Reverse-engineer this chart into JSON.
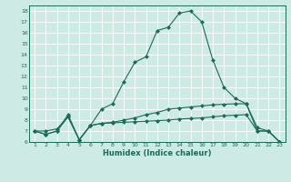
{
  "xlabel": "Humidex (Indice chaleur)",
  "bg_color": "#ceeae4",
  "line_color": "#1a6b5a",
  "xlim": [
    1,
    23
  ],
  "ylim": [
    6,
    18
  ],
  "xticks": [
    1,
    2,
    3,
    4,
    5,
    6,
    7,
    8,
    9,
    10,
    11,
    12,
    13,
    14,
    15,
    16,
    17,
    18,
    19,
    20,
    21,
    22,
    23
  ],
  "yticks": [
    6,
    7,
    8,
    9,
    10,
    11,
    12,
    13,
    14,
    15,
    16,
    17,
    18
  ],
  "line1_x": [
    1,
    2,
    3,
    4,
    5,
    6,
    7,
    8,
    9,
    10,
    11,
    12,
    13,
    14,
    15,
    16,
    17,
    18,
    19,
    20,
    21,
    22,
    23
  ],
  "line1_y": [
    7.0,
    6.7,
    7.0,
    8.3,
    6.2,
    7.5,
    7.7,
    7.75,
    7.8,
    7.85,
    7.9,
    7.95,
    8.0,
    8.1,
    8.15,
    8.2,
    8.3,
    8.4,
    8.45,
    8.5,
    7.0,
    7.0,
    6.0
  ],
  "line2_x": [
    1,
    2,
    3,
    4,
    5,
    6,
    7,
    8,
    9,
    10,
    11,
    12,
    13,
    14,
    15,
    16,
    17,
    18,
    19,
    20,
    21,
    22,
    23
  ],
  "line2_y": [
    7.0,
    7.0,
    7.2,
    8.3,
    6.2,
    7.5,
    7.7,
    7.8,
    8.0,
    8.2,
    8.5,
    8.7,
    9.0,
    9.1,
    9.2,
    9.3,
    9.4,
    9.45,
    9.5,
    9.5,
    7.3,
    7.0,
    6.0
  ],
  "line3_x": [
    1,
    2,
    3,
    4,
    5,
    6,
    7,
    8,
    9,
    10,
    11,
    12,
    13,
    14,
    15,
    16,
    17,
    18,
    19,
    20,
    21,
    22,
    23
  ],
  "line3_y": [
    7.0,
    6.7,
    7.0,
    8.5,
    6.2,
    7.5,
    9.0,
    9.5,
    11.5,
    13.3,
    13.8,
    16.2,
    16.5,
    17.8,
    18.0,
    17.0,
    13.5,
    11.0,
    10.0,
    9.5,
    7.0,
    7.0,
    6.0
  ],
  "markersize": 2.5
}
